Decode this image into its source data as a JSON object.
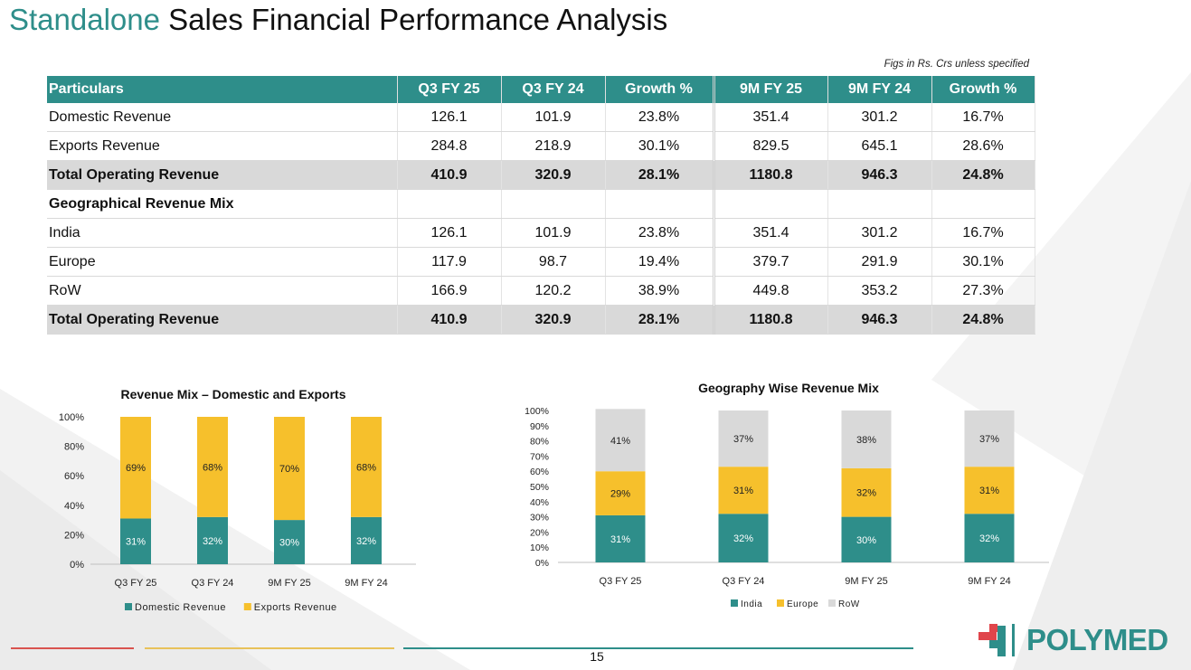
{
  "title": {
    "accent": "Standalone",
    "rest": " Sales Financial Performance Analysis"
  },
  "figs_note": "Figs in Rs. Crs unless specified",
  "table": {
    "headers": [
      "Particulars",
      "Q3 FY 25",
      "Q3 FY 24",
      "Growth %",
      "9M FY 25",
      "9M FY 24",
      "Growth %"
    ],
    "rows": [
      {
        "label": "Domestic Revenue",
        "values": [
          "126.1",
          "101.9",
          "23.8%",
          "351.4",
          "301.2",
          "16.7%"
        ],
        "kind": "normal"
      },
      {
        "label": "Exports Revenue",
        "values": [
          "284.8",
          "218.9",
          "30.1%",
          "829.5",
          "645.1",
          "28.6%"
        ],
        "kind": "normal"
      },
      {
        "label": "Total Operating Revenue",
        "values": [
          "410.9",
          "320.9",
          "28.1%",
          "1180.8",
          "946.3",
          "24.8%"
        ],
        "kind": "total"
      },
      {
        "label": "Geographical Revenue Mix",
        "values": [
          "",
          "",
          "",
          "",
          "",
          ""
        ],
        "kind": "sec"
      },
      {
        "label": "India",
        "values": [
          "126.1",
          "101.9",
          "23.8%",
          "351.4",
          "301.2",
          "16.7%"
        ],
        "kind": "normal"
      },
      {
        "label": "Europe",
        "values": [
          "117.9",
          "98.7",
          "19.4%",
          "379.7",
          "291.9",
          "30.1%"
        ],
        "kind": "normal"
      },
      {
        "label": "RoW",
        "values": [
          "166.9",
          "120.2",
          "38.9%",
          "449.8",
          "353.2",
          "27.3%"
        ],
        "kind": "normal"
      },
      {
        "label": "Total Operating Revenue",
        "values": [
          "410.9",
          "320.9",
          "28.1%",
          "1180.8",
          "946.3",
          "24.8%"
        ],
        "kind": "total"
      }
    ]
  },
  "colors": {
    "teal": "#2e8e8a",
    "yellow": "#f6c02c",
    "grey": "#d9d9d9"
  },
  "chart_data": [
    {
      "type": "bar",
      "stacked": true,
      "title": "Revenue Mix – Domestic and Exports",
      "categories": [
        "Q3 FY 25",
        "Q3 FY 24",
        "9M FY 25",
        "9M FY 24"
      ],
      "series": [
        {
          "name": "Domestic Revenue",
          "values": [
            31,
            32,
            30,
            32
          ],
          "labels": [
            "31%",
            "32%",
            "30%",
            "32%"
          ],
          "color": "#2e8e8a"
        },
        {
          "name": "Exports Revenue",
          "values": [
            69,
            68,
            70,
            68
          ],
          "labels": [
            "69%",
            "68%",
            "70%",
            "68%"
          ],
          "color": "#f6c02c"
        }
      ],
      "ylim": [
        0,
        100
      ],
      "yticks": [
        "0%",
        "20%",
        "40%",
        "60%",
        "80%",
        "100%"
      ],
      "legend": "bottom",
      "grid": false
    },
    {
      "type": "bar",
      "stacked": true,
      "title": "Geography Wise Revenue Mix",
      "categories": [
        "Q3 FY 25",
        "Q3 FY 24",
        "9M FY 25",
        "9M FY 24"
      ],
      "series": [
        {
          "name": "India",
          "values": [
            31,
            32,
            30,
            32
          ],
          "labels": [
            "31%",
            "32%",
            "30%",
            "32%"
          ],
          "color": "#2e8e8a"
        },
        {
          "name": "Europe",
          "values": [
            29,
            31,
            32,
            31
          ],
          "labels": [
            "29%",
            "31%",
            "32%",
            "31%"
          ],
          "color": "#f6c02c"
        },
        {
          "name": "RoW",
          "values": [
            41,
            37,
            38,
            37
          ],
          "labels": [
            "41%",
            "37%",
            "38%",
            "37%"
          ],
          "color": "#d9d9d9"
        }
      ],
      "ylim": [
        0,
        100
      ],
      "yticks": [
        "0%",
        "10%",
        "20%",
        "30%",
        "40%",
        "50%",
        "60%",
        "70%",
        "80%",
        "90%",
        "100%"
      ],
      "legend": "bottom",
      "grid": false
    }
  ],
  "page_number": "15",
  "logo": {
    "word": "POLYMED"
  }
}
